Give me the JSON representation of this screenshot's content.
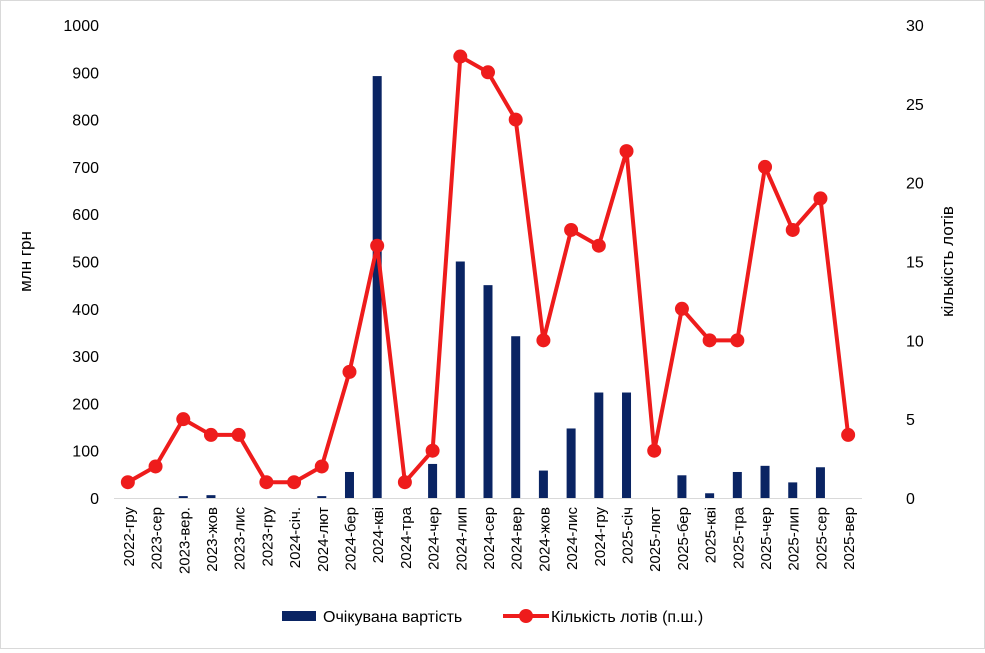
{
  "chart_data": {
    "type": "bar+line",
    "categories": [
      "2022-гру",
      "2023-сер",
      "2023-вер.",
      "2023-жов",
      "2023-лис",
      "2023-гру",
      "2024-січ.",
      "2024-лют",
      "2024-бер",
      "2024-кві",
      "2024-тра",
      "2024-чер",
      "2024-лип",
      "2024-сер",
      "2024-вер",
      "2024-жов",
      "2024-лис",
      "2024-гру",
      "2025-січ",
      "2025-лют",
      "2025-бер",
      "2025-кві",
      "2025-тра",
      "2025-чер",
      "2025-лип",
      "2025-сер",
      "2025-вер"
    ],
    "series": [
      {
        "name": "Очікувана вартість",
        "type": "bar",
        "axis": "left",
        "color": "#0a2463",
        "values": [
          0,
          0,
          4,
          6,
          0,
          0,
          0,
          4,
          55,
          892,
          0,
          72,
          500,
          450,
          342,
          58,
          147,
          223,
          223,
          0,
          48,
          10,
          55,
          68,
          33,
          65,
          0
        ]
      },
      {
        "name": "Кількість лотів (п.ш.)",
        "type": "line",
        "axis": "right",
        "color": "#ee1c1c",
        "values": [
          1,
          2,
          5,
          4,
          4,
          1,
          1,
          2,
          8,
          16,
          1,
          3,
          28,
          27,
          24,
          10,
          17,
          16,
          22,
          3,
          12,
          10,
          10,
          21,
          17,
          19,
          4
        ]
      }
    ],
    "y_left": {
      "label": "млн грн",
      "ylim": [
        0,
        1000
      ],
      "ticks": [
        "0",
        "100",
        "200",
        "300",
        "400",
        "500",
        "600",
        "700",
        "800",
        "900",
        "1000"
      ]
    },
    "y_right": {
      "label": "кількість лотів",
      "ylim": [
        0,
        30
      ],
      "ticks": [
        "0",
        "5",
        "10",
        "15",
        "20",
        "25",
        "30"
      ]
    },
    "grid": false,
    "legend": {
      "placement": "bottom",
      "items": [
        {
          "label": "Очікувана вартість",
          "symbol": "bar"
        },
        {
          "label": "Кількість лотів (п.ш.)",
          "symbol": "line-marker"
        }
      ]
    }
  }
}
